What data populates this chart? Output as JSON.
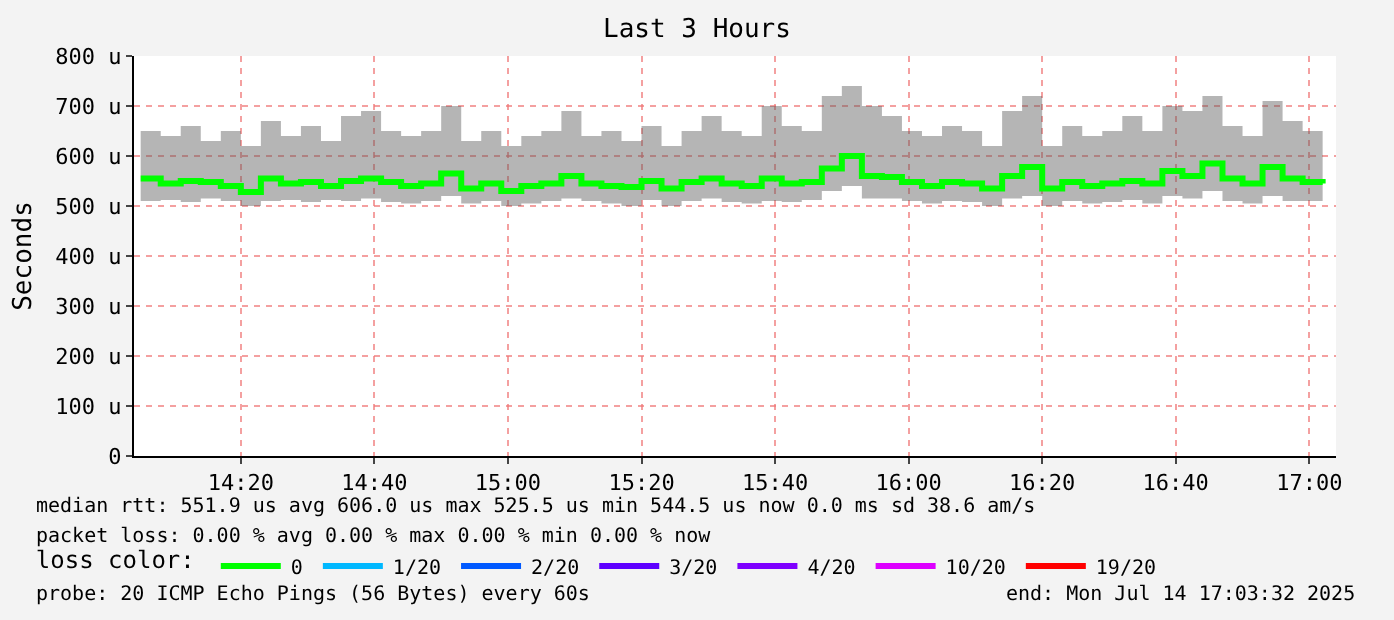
{
  "chart_data": {
    "type": "step",
    "title": "Last 3 Hours",
    "ylabel": "Seconds",
    "legend_title": "loss color:",
    "legend": "bottom",
    "grid": true,
    "marker": "none",
    "line_style": "solid",
    "x": [
      "2025-07-14T14:05",
      "2025-07-14T14:08",
      "2025-07-14T14:11",
      "2025-07-14T14:14",
      "2025-07-14T14:17",
      "2025-07-14T14:20",
      "2025-07-14T14:23",
      "2025-07-14T14:26",
      "2025-07-14T14:29",
      "2025-07-14T14:32",
      "2025-07-14T14:35",
      "2025-07-14T14:38",
      "2025-07-14T14:41",
      "2025-07-14T14:44",
      "2025-07-14T14:47",
      "2025-07-14T14:50",
      "2025-07-14T14:53",
      "2025-07-14T14:56",
      "2025-07-14T14:59",
      "2025-07-14T15:02",
      "2025-07-14T15:05",
      "2025-07-14T15:08",
      "2025-07-14T15:11",
      "2025-07-14T15:14",
      "2025-07-14T15:17",
      "2025-07-14T15:20",
      "2025-07-14T15:23",
      "2025-07-14T15:26",
      "2025-07-14T15:29",
      "2025-07-14T15:32",
      "2025-07-14T15:35",
      "2025-07-14T15:38",
      "2025-07-14T15:41",
      "2025-07-14T15:44",
      "2025-07-14T15:47",
      "2025-07-14T15:50",
      "2025-07-14T15:53",
      "2025-07-14T15:56",
      "2025-07-14T15:59",
      "2025-07-14T16:02",
      "2025-07-14T16:05",
      "2025-07-14T16:08",
      "2025-07-14T16:11",
      "2025-07-14T16:14",
      "2025-07-14T16:17",
      "2025-07-14T16:20",
      "2025-07-14T16:23",
      "2025-07-14T16:26",
      "2025-07-14T16:29",
      "2025-07-14T16:32",
      "2025-07-14T16:35",
      "2025-07-14T16:38",
      "2025-07-14T16:41",
      "2025-07-14T16:44",
      "2025-07-14T16:47",
      "2025-07-14T16:50",
      "2025-07-14T16:53",
      "2025-07-14T16:56",
      "2025-07-14T16:59",
      "2025-07-14T17:02"
    ],
    "xlim": [
      "2025-07-14T14:04",
      "2025-07-14T17:04"
    ],
    "xticks": [
      {
        "value": "2025-07-14T14:20",
        "label": "14:20"
      },
      {
        "value": "2025-07-14T14:40",
        "label": "14:40"
      },
      {
        "value": "2025-07-14T15:00",
        "label": "15:00"
      },
      {
        "value": "2025-07-14T15:20",
        "label": "15:20"
      },
      {
        "value": "2025-07-14T15:40",
        "label": "15:40"
      },
      {
        "value": "2025-07-14T16:00",
        "label": "16:00"
      },
      {
        "value": "2025-07-14T16:20",
        "label": "16:20"
      },
      {
        "value": "2025-07-14T16:40",
        "label": "16:40"
      },
      {
        "value": "2025-07-14T17:00",
        "label": "17:00"
      }
    ],
    "ylim": [
      0,
      800
    ],
    "yticks": [
      0,
      {
        "value": 100,
        "label": "100 u"
      },
      {
        "value": 200,
        "label": "200 u"
      },
      {
        "value": 300,
        "label": "300 u"
      },
      {
        "value": 400,
        "label": "400 u"
      },
      {
        "value": 500,
        "label": "500 u"
      },
      {
        "value": 600,
        "label": "600 u"
      },
      {
        "value": 700,
        "label": "700 u"
      },
      {
        "value": 800,
        "label": "800 u"
      }
    ],
    "series": [
      {
        "name": "0",
        "color": "#00ff00",
        "values": [
          555,
          545,
          550,
          548,
          540,
          528,
          555,
          545,
          548,
          540,
          550,
          555,
          548,
          540,
          545,
          565,
          535,
          545,
          530,
          540,
          545,
          560,
          545,
          540,
          538,
          550,
          535,
          548,
          555,
          545,
          540,
          555,
          545,
          548,
          575,
          600,
          560,
          558,
          548,
          540,
          548,
          545,
          535,
          560,
          578,
          535,
          548,
          540,
          545,
          550,
          545,
          570,
          560,
          585,
          555,
          545,
          578,
          555,
          548,
          545
        ],
        "lower": [
          510,
          512,
          508,
          515,
          510,
          500,
          510,
          512,
          508,
          512,
          510,
          515,
          508,
          505,
          510,
          520,
          505,
          510,
          500,
          505,
          510,
          515,
          510,
          505,
          500,
          512,
          500,
          510,
          515,
          508,
          505,
          510,
          508,
          512,
          530,
          540,
          515,
          515,
          510,
          505,
          510,
          508,
          500,
          515,
          520,
          500,
          510,
          505,
          508,
          512,
          505,
          520,
          515,
          530,
          510,
          505,
          520,
          510,
          510,
          505
        ],
        "upper": [
          650,
          640,
          660,
          630,
          650,
          620,
          670,
          640,
          660,
          630,
          680,
          690,
          650,
          640,
          650,
          700,
          630,
          650,
          620,
          640,
          650,
          690,
          640,
          650,
          630,
          660,
          620,
          650,
          680,
          650,
          640,
          700,
          660,
          650,
          720,
          740,
          700,
          680,
          650,
          640,
          660,
          650,
          620,
          690,
          720,
          620,
          660,
          640,
          650,
          680,
          650,
          700,
          690,
          720,
          660,
          640,
          710,
          670,
          650,
          640
        ]
      },
      {
        "name": "1/20",
        "color": "#00b8ff",
        "values": [
          null,
          null,
          null,
          null,
          null,
          null,
          null,
          null,
          null,
          null,
          null,
          null,
          null,
          null,
          null,
          null,
          null,
          null,
          null,
          null,
          null,
          null,
          null,
          null,
          null,
          null,
          null,
          null,
          null,
          null,
          null,
          null,
          null,
          null,
          null,
          null,
          null,
          null,
          null,
          null,
          null,
          null,
          null,
          null,
          null,
          null,
          null,
          null,
          null,
          null,
          null,
          null,
          null,
          null,
          null,
          null,
          null,
          null,
          null,
          null
        ]
      },
      {
        "name": "2/20",
        "color": "#0059ff",
        "values": [
          null,
          null,
          null,
          null,
          null,
          null,
          null,
          null,
          null,
          null,
          null,
          null,
          null,
          null,
          null,
          null,
          null,
          null,
          null,
          null,
          null,
          null,
          null,
          null,
          null,
          null,
          null,
          null,
          null,
          null,
          null,
          null,
          null,
          null,
          null,
          null,
          null,
          null,
          null,
          null,
          null,
          null,
          null,
          null,
          null,
          null,
          null,
          null,
          null,
          null,
          null,
          null,
          null,
          null,
          null,
          null,
          null,
          null,
          null,
          null
        ]
      },
      {
        "name": "3/20",
        "color": "#5e00ff",
        "values": [
          null,
          null,
          null,
          null,
          null,
          null,
          null,
          null,
          null,
          null,
          null,
          null,
          null,
          null,
          null,
          null,
          null,
          null,
          null,
          null,
          null,
          null,
          null,
          null,
          null,
          null,
          null,
          null,
          null,
          null,
          null,
          null,
          null,
          null,
          null,
          null,
          null,
          null,
          null,
          null,
          null,
          null,
          null,
          null,
          null,
          null,
          null,
          null,
          null,
          null,
          null,
          null,
          null,
          null,
          null,
          null,
          null,
          null,
          null,
          null
        ]
      },
      {
        "name": "4/20",
        "color": "#7e00ff",
        "values": [
          null,
          null,
          null,
          null,
          null,
          null,
          null,
          null,
          null,
          null,
          null,
          null,
          null,
          null,
          null,
          null,
          null,
          null,
          null,
          null,
          null,
          null,
          null,
          null,
          null,
          null,
          null,
          null,
          null,
          null,
          null,
          null,
          null,
          null,
          null,
          null,
          null,
          null,
          null,
          null,
          null,
          null,
          null,
          null,
          null,
          null,
          null,
          null,
          null,
          null,
          null,
          null,
          null,
          null,
          null,
          null,
          null,
          null,
          null,
          null
        ]
      },
      {
        "name": "10/20",
        "color": "#dd00ff",
        "values": [
          null,
          null,
          null,
          null,
          null,
          null,
          null,
          null,
          null,
          null,
          null,
          null,
          null,
          null,
          null,
          null,
          null,
          null,
          null,
          null,
          null,
          null,
          null,
          null,
          null,
          null,
          null,
          null,
          null,
          null,
          null,
          null,
          null,
          null,
          null,
          null,
          null,
          null,
          null,
          null,
          null,
          null,
          null,
          null,
          null,
          null,
          null,
          null,
          null,
          null,
          null,
          null,
          null,
          null,
          null,
          null,
          null,
          null,
          null,
          null
        ]
      },
      {
        "name": "19/20",
        "color": "#ff0000",
        "values": [
          null,
          null,
          null,
          null,
          null,
          null,
          null,
          null,
          null,
          null,
          null,
          null,
          null,
          null,
          null,
          null,
          null,
          null,
          null,
          null,
          null,
          null,
          null,
          null,
          null,
          null,
          null,
          null,
          null,
          null,
          null,
          null,
          null,
          null,
          null,
          null,
          null,
          null,
          null,
          null,
          null,
          null,
          null,
          null,
          null,
          null,
          null,
          null,
          null,
          null,
          null,
          null,
          null,
          null,
          null,
          null,
          null,
          null,
          null,
          null
        ]
      }
    ],
    "annotations": [
      "median rtt: 551.9 us avg 606.0 us max 525.5 us min 544.5 us now 0.0 ms sd 38.6 am/s",
      "packet loss: 0.00 % avg 0.00 % max 0.00 % min 0.00 % now",
      "probe: 20 ICMP Echo Pings (56 Bytes) every 60s",
      "end: Mon Jul 14 17:03:32 2025"
    ]
  }
}
